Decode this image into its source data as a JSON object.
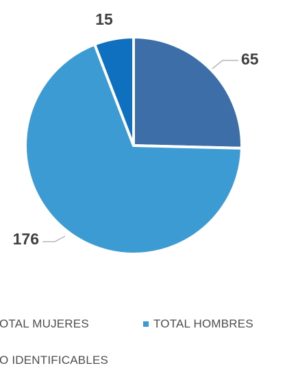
{
  "chart_data": {
    "type": "pie",
    "series": [
      {
        "name": "TOTAL MUJERES",
        "value": 65,
        "color": "#3d6ea8"
      },
      {
        "name": "TOTAL HOMBRES",
        "value": 176,
        "color": "#3d9bd4"
      },
      {
        "name": "NO IDENTIFICABLES",
        "value": 15,
        "color": "#0f70c0"
      }
    ],
    "legend": {
      "placement": "bottom",
      "entries_visible": [
        "OTAL MUJERES",
        "TOTAL HOMBRES",
        "O IDENTIFICABLES"
      ]
    },
    "data_labels": [
      "65",
      "176",
      "15"
    ]
  }
}
